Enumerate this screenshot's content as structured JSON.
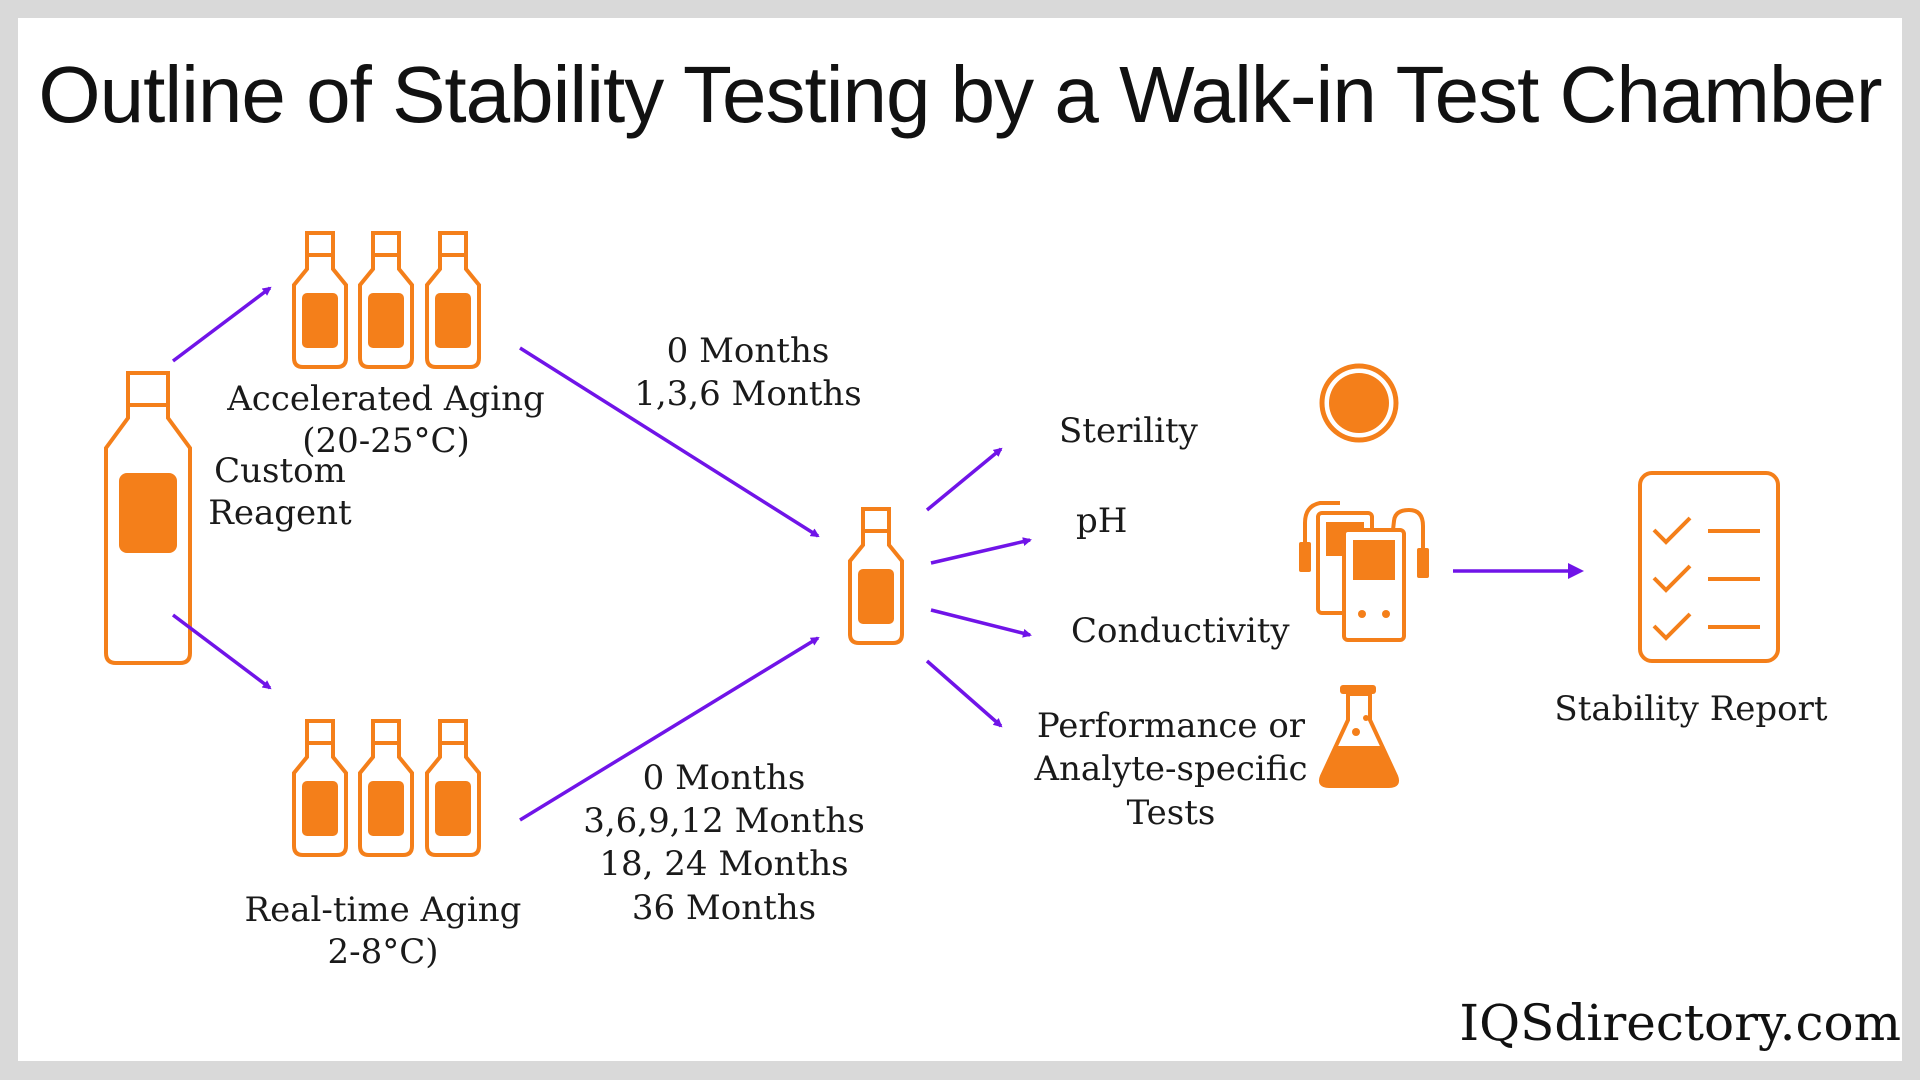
{
  "title": "Outline of Stability Testing by a Walk-in Test Chamber",
  "start": {
    "line1": "Custom",
    "line2": "Reagent"
  },
  "accelerated": {
    "line1": "Accelerated Aging",
    "line2": "(20-25°C)"
  },
  "realtime": {
    "line1": "Real-time Aging",
    "line2": "2-8°C)"
  },
  "upper_schedule": [
    "0 Months",
    "1,3,6 Months"
  ],
  "lower_schedule": [
    "0 Months",
    "3,6,9,12 Months",
    "18, 24 Months",
    "36 Months"
  ],
  "tests": {
    "sterility": "Sterility",
    "ph": "pH",
    "conductivity": "Conductivity",
    "performance": [
      "Performance or",
      "Analyte-specific",
      "Tests"
    ]
  },
  "report": "Stability Report",
  "brand": "IQSdirectory.com",
  "colors": {
    "accent_orange": "#f47f1a",
    "arrow_purple": "#7014e8",
    "frame_gray": "#d9d9d9"
  }
}
